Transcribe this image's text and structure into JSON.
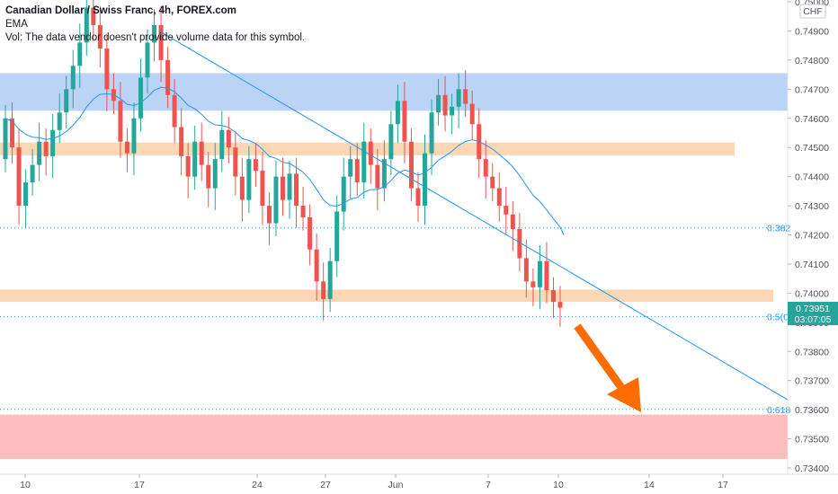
{
  "header": {
    "symbol_title": "Canadian Dollar / Swiss Franc, 4h, FOREX.com",
    "indicator": "EMA",
    "volume_note": "Vol: The data vendor doesn't provide volume data for this symbol."
  },
  "price_axis": {
    "currency": "CHF",
    "ticks": [
      "0.75000",
      "0.74900",
      "0.74800",
      "0.74700",
      "0.74600",
      "0.74500",
      "0.74400",
      "0.74300",
      "0.74200",
      "0.74100",
      "0.74000",
      "0.73900",
      "0.73800",
      "0.73700",
      "0.73600",
      "0.73500",
      "0.73400"
    ],
    "current_price": "0.73951",
    "countdown": "03:07:05"
  },
  "time_axis": {
    "ticks": [
      "10",
      "17",
      "24",
      "27",
      "Jun",
      "7",
      "10",
      "14",
      "17"
    ]
  },
  "fib_labels": [
    "0.382",
    "0.5(0",
    "0.618"
  ],
  "colors": {
    "up": "#26a69a",
    "down": "#ef5350",
    "ema": "#2196f3",
    "supply_zone": "#bbd3f5",
    "demand_zone": "#fcd7b6",
    "target_zone": "#fdbcbc",
    "arrow": "#ff6d00",
    "price_tag": "#26a69a"
  },
  "chart_data": {
    "type": "candlestick",
    "symbol": "CADCHF",
    "timeframe": "4h",
    "ylim": [
      0.7341,
      0.7503
    ],
    "current_price": 0.73951,
    "zones": [
      {
        "kind": "supply",
        "from": 0.74626,
        "to": 0.74755
      },
      {
        "kind": "resistance",
        "from": 0.74473,
        "to": 0.74517
      },
      {
        "kind": "support",
        "from": 0.7397,
        "to": 0.74012
      },
      {
        "kind": "target",
        "from": 0.73431,
        "to": 0.73583
      }
    ],
    "fibonacci_levels": [
      {
        "label": "0.382",
        "price": 0.74224
      },
      {
        "label": "0.5",
        "price": 0.7392
      },
      {
        "label": "0.618",
        "price": 0.73601
      }
    ],
    "trendline_description": "descending from 0.7490 (May 17) through 0.7392 (Jun 14)",
    "projection": "bearish, toward 0.7360"
  }
}
